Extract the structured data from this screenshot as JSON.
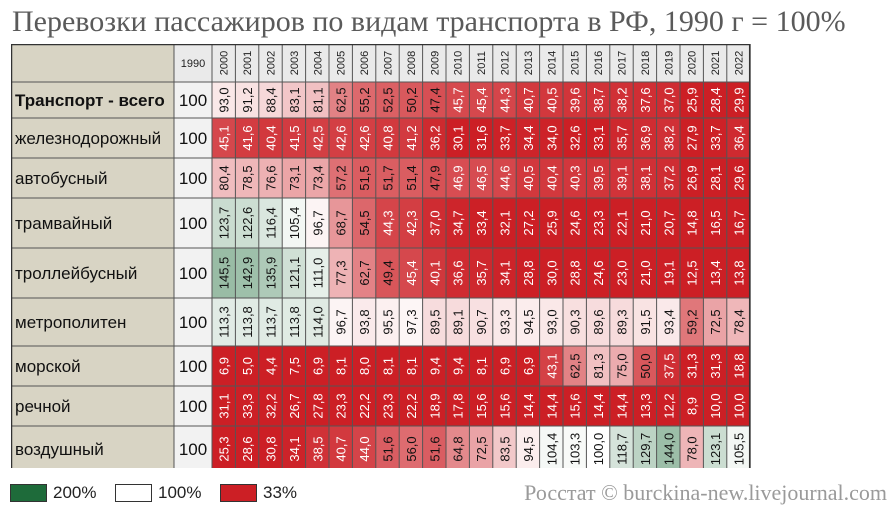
{
  "chart_data": {
    "type": "heatmap",
    "title": "Перевозки пассажиров по видам транспорта в РФ, 1990 г = 100%",
    "base_year_header": "1990",
    "years": [
      "2000",
      "2001",
      "2002",
      "2003",
      "2004",
      "2005",
      "2006",
      "2007",
      "2008",
      "2009",
      "2010",
      "2011",
      "2012",
      "2013",
      "2014",
      "2015",
      "2016",
      "2017",
      "2018",
      "2019",
      "2020",
      "2021",
      "2022"
    ],
    "rows": [
      {
        "label": "Транспорт - всего",
        "base": "100",
        "values": [
          93.0,
          91.2,
          88.4,
          83.1,
          81.1,
          62.5,
          55.2,
          52.5,
          50.2,
          47.4,
          45.7,
          45.4,
          44.3,
          40.7,
          40.5,
          39.6,
          38.7,
          38.2,
          37.6,
          37.0,
          25.9,
          28.4,
          29.9
        ]
      },
      {
        "label": "железнодорожный",
        "base": "100",
        "values": [
          45.1,
          41.6,
          40.4,
          41.5,
          42.5,
          42.6,
          42.6,
          40.8,
          41.2,
          36.2,
          30.1,
          31.6,
          33.7,
          34.4,
          34.0,
          32.6,
          33.1,
          35.7,
          36.9,
          38.2,
          27.9,
          33.7,
          36.4
        ]
      },
      {
        "label": "автобусный",
        "base": "100",
        "values": [
          80.4,
          78.5,
          76.6,
          73.1,
          73.4,
          57.2,
          51.5,
          51.7,
          51.4,
          47.9,
          46.9,
          46.5,
          44.6,
          40.5,
          40.4,
          40.3,
          39.5,
          39.1,
          38.1,
          37.2,
          26.9,
          28.1,
          29.6
        ]
      },
      {
        "label": "трамвайный",
        "base": "100",
        "values": [
          123.7,
          122.6,
          116.4,
          105.4,
          96.7,
          68.7,
          54.5,
          44.3,
          42.3,
          37.0,
          34.7,
          33.4,
          32.1,
          27.2,
          25.9,
          24.6,
          23.3,
          22.1,
          21.0,
          20.7,
          14.8,
          16.5,
          16.7
        ]
      },
      {
        "label": "троллейбусный",
        "base": "100",
        "values": [
          145.5,
          142.9,
          135.9,
          121.1,
          111.0,
          77.3,
          62.7,
          49.4,
          45.4,
          40.1,
          36.6,
          35.7,
          34.1,
          28.8,
          30.0,
          28.8,
          24.6,
          23.0,
          21.0,
          19.1,
          12.5,
          13.4,
          13.8
        ]
      },
      {
        "label": "метрополитен",
        "base": "100",
        "values": [
          113.3,
          113.8,
          113.7,
          113.8,
          114.0,
          96.7,
          93.8,
          95.5,
          97.3,
          89.5,
          89.1,
          90.7,
          93.3,
          94.5,
          93.0,
          90.3,
          89.6,
          89.3,
          91.5,
          93.4,
          59.2,
          72.5,
          78.4
        ]
      },
      {
        "label": "морской",
        "base": "100",
        "values": [
          6.9,
          5.0,
          4.4,
          7.5,
          6.9,
          8.1,
          8.0,
          8.1,
          8.1,
          9.4,
          9.4,
          8.1,
          6.9,
          6.9,
          43.1,
          62.5,
          81.3,
          75.0,
          50.0,
          37.5,
          31.3,
          31.3,
          18.8
        ]
      },
      {
        "label": "речной",
        "base": "100",
        "values": [
          31.1,
          33.3,
          32.2,
          26.7,
          27.8,
          23.3,
          22.2,
          23.3,
          22.2,
          18.9,
          17.8,
          15.6,
          15.6,
          14.4,
          14.4,
          15.6,
          14.4,
          14.4,
          13.3,
          12.2,
          8.9,
          10.0,
          10.0
        ]
      },
      {
        "label": "воздушный",
        "base": "100",
        "values": [
          25.3,
          28.6,
          30.8,
          34.1,
          38.5,
          40.7,
          44.0,
          51.6,
          56.0,
          51.6,
          64.8,
          72.5,
          83.5,
          94.5,
          104.4,
          103.3,
          100.0,
          118.7,
          129.7,
          144.0,
          78.0,
          123.1,
          105.5
        ]
      }
    ],
    "color_scale": [
      {
        "value": 200,
        "color": "#1e6b3a",
        "label": "200%"
      },
      {
        "value": 100,
        "color": "#ffffff",
        "label": "100%"
      },
      {
        "value": 33,
        "color": "#cc1f25",
        "label": "33%"
      }
    ],
    "colors": {
      "label_bg": "#d8d4c4",
      "base_bg": "#f2f2f2",
      "header_bg": "#eaeaea",
      "grid": "#555555"
    },
    "decimal_separator": ","
  },
  "source_text": "Росстат © burckina-new.livejournal.com"
}
